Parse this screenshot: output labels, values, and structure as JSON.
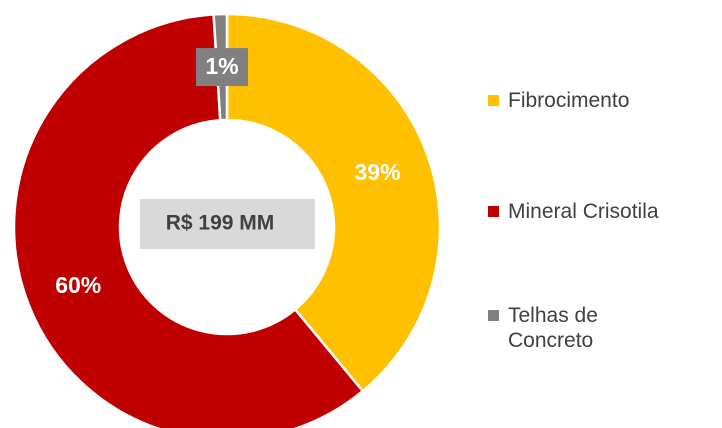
{
  "chart_data": {
    "type": "donut",
    "categories": [
      "Fibrocimento",
      "Mineral Crisotila",
      "Telhas de Concreto"
    ],
    "values": [
      39,
      60,
      1
    ],
    "value_labels": [
      "39%",
      "60%",
      "1%"
    ],
    "colors": [
      "#FFC000",
      "#C00000",
      "#808080"
    ],
    "center_label": "R$ 199 MM",
    "legend": "right"
  }
}
